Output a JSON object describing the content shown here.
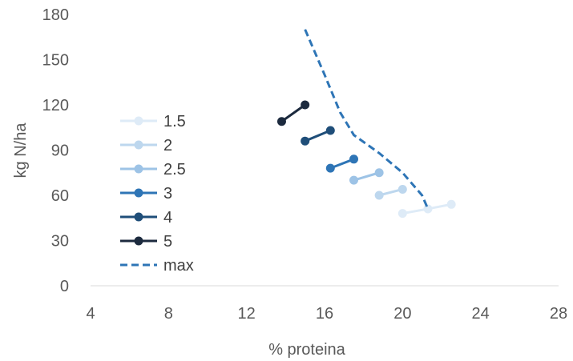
{
  "chart_data": {
    "type": "line",
    "title": "",
    "xlabel": "% proteina",
    "ylabel": "kg N/ha",
    "xlim": [
      4,
      28
    ],
    "ylim": [
      0,
      180
    ],
    "xticks": [
      4,
      8,
      12,
      16,
      20,
      24,
      28
    ],
    "yticks": [
      0,
      30,
      60,
      90,
      120,
      150,
      180
    ],
    "grid": false,
    "legend_position": "left",
    "series": [
      {
        "name": "1.5",
        "color": "#deebf7",
        "style": "line-marker",
        "points": [
          [
            20.0,
            48
          ],
          [
            21.3,
            51
          ],
          [
            22.5,
            54
          ]
        ]
      },
      {
        "name": "2",
        "color": "#bdd7ee",
        "style": "line-marker",
        "points": [
          [
            18.8,
            60
          ],
          [
            20.0,
            64
          ]
        ]
      },
      {
        "name": "2.5",
        "color": "#9dc3e6",
        "style": "line-marker",
        "points": [
          [
            17.5,
            70
          ],
          [
            18.8,
            75
          ]
        ]
      },
      {
        "name": "3",
        "color": "#2e75b6",
        "style": "line-marker",
        "points": [
          [
            16.3,
            78
          ],
          [
            17.5,
            84
          ]
        ]
      },
      {
        "name": "4",
        "color": "#1f4e79",
        "style": "line-marker",
        "points": [
          [
            15.0,
            96
          ],
          [
            16.3,
            103
          ]
        ]
      },
      {
        "name": "5",
        "color": "#1c2a3e",
        "style": "line-marker",
        "points": [
          [
            13.8,
            109
          ],
          [
            15.0,
            120
          ]
        ]
      },
      {
        "name": "max",
        "color": "#2e75b6",
        "style": "dashed",
        "points": [
          [
            15.0,
            170
          ],
          [
            16.0,
            140
          ],
          [
            16.8,
            115
          ],
          [
            17.5,
            100
          ],
          [
            18.8,
            88
          ],
          [
            20.0,
            75
          ],
          [
            21.0,
            60
          ],
          [
            21.3,
            51
          ]
        ]
      }
    ]
  }
}
